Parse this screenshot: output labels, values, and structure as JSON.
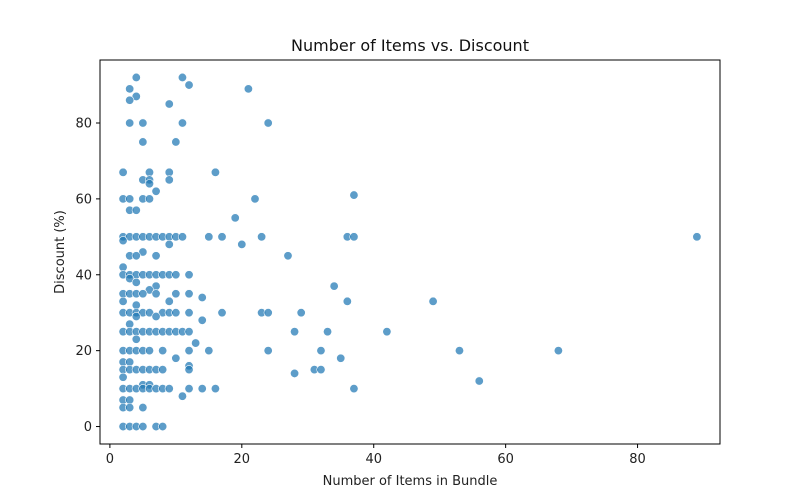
{
  "chart_data": {
    "type": "scatter",
    "title": "Number of Items vs. Discount",
    "xlabel": "Number of Items in Bundle",
    "ylabel": "Discount (%)",
    "xlim": [
      -1.5,
      92.5
    ],
    "ylim": [
      -4.6,
      96.6
    ],
    "xticks": [
      0,
      20,
      40,
      60,
      80
    ],
    "yticks": [
      0,
      20,
      40,
      60,
      80
    ],
    "grid": false,
    "legend": "none",
    "marker_color": "#1f77b4",
    "marker_edge_color": "#ffffff",
    "points": [
      [
        4,
        92
      ],
      [
        11,
        92
      ],
      [
        12,
        90
      ],
      [
        3,
        89
      ],
      [
        21,
        89
      ],
      [
        4,
        87
      ],
      [
        3,
        86
      ],
      [
        9,
        85
      ],
      [
        3,
        80
      ],
      [
        5,
        80
      ],
      [
        11,
        80
      ],
      [
        24,
        80
      ],
      [
        5,
        75
      ],
      [
        10,
        75
      ],
      [
        2,
        67
      ],
      [
        6,
        67
      ],
      [
        9,
        67
      ],
      [
        16,
        67
      ],
      [
        5,
        65
      ],
      [
        6,
        65
      ],
      [
        9,
        65
      ],
      [
        6,
        64
      ],
      [
        7,
        62
      ],
      [
        2,
        60
      ],
      [
        3,
        60
      ],
      [
        5,
        60
      ],
      [
        6,
        60
      ],
      [
        22,
        60
      ],
      [
        37,
        61
      ],
      [
        3,
        57
      ],
      [
        4,
        57
      ],
      [
        19,
        55
      ],
      [
        2,
        50
      ],
      [
        3,
        50
      ],
      [
        4,
        50
      ],
      [
        5,
        50
      ],
      [
        6,
        50
      ],
      [
        7,
        50
      ],
      [
        8,
        50
      ],
      [
        9,
        50
      ],
      [
        10,
        50
      ],
      [
        11,
        50
      ],
      [
        15,
        50
      ],
      [
        17,
        50
      ],
      [
        23,
        50
      ],
      [
        36,
        50
      ],
      [
        37,
        50
      ],
      [
        89,
        50
      ],
      [
        2,
        49
      ],
      [
        20,
        48
      ],
      [
        9,
        48
      ],
      [
        5,
        46
      ],
      [
        3,
        45
      ],
      [
        4,
        45
      ],
      [
        7,
        45
      ],
      [
        27,
        45
      ],
      [
        2,
        42
      ],
      [
        2,
        40
      ],
      [
        3,
        40
      ],
      [
        4,
        40
      ],
      [
        5,
        40
      ],
      [
        6,
        40
      ],
      [
        7,
        40
      ],
      [
        8,
        40
      ],
      [
        9,
        40
      ],
      [
        10,
        40
      ],
      [
        12,
        40
      ],
      [
        3,
        39
      ],
      [
        4,
        38
      ],
      [
        7,
        37
      ],
      [
        34,
        37
      ],
      [
        6,
        36
      ],
      [
        2,
        35
      ],
      [
        3,
        35
      ],
      [
        4,
        35
      ],
      [
        5,
        35
      ],
      [
        7,
        35
      ],
      [
        10,
        35
      ],
      [
        12,
        35
      ],
      [
        14,
        34
      ],
      [
        2,
        33
      ],
      [
        9,
        33
      ],
      [
        36,
        33
      ],
      [
        49,
        33
      ],
      [
        4,
        32
      ],
      [
        2,
        30
      ],
      [
        3,
        30
      ],
      [
        4,
        30
      ],
      [
        5,
        30
      ],
      [
        6,
        30
      ],
      [
        8,
        30
      ],
      [
        9,
        30
      ],
      [
        10,
        30
      ],
      [
        12,
        30
      ],
      [
        17,
        30
      ],
      [
        23,
        30
      ],
      [
        24,
        30
      ],
      [
        29,
        30
      ],
      [
        4,
        29
      ],
      [
        7,
        29
      ],
      [
        14,
        28
      ],
      [
        3,
        27
      ],
      [
        2,
        25
      ],
      [
        3,
        25
      ],
      [
        4,
        25
      ],
      [
        5,
        25
      ],
      [
        6,
        25
      ],
      [
        7,
        25
      ],
      [
        8,
        25
      ],
      [
        9,
        25
      ],
      [
        10,
        25
      ],
      [
        11,
        25
      ],
      [
        12,
        25
      ],
      [
        28,
        25
      ],
      [
        33,
        25
      ],
      [
        42,
        25
      ],
      [
        4,
        23
      ],
      [
        13,
        22
      ],
      [
        2,
        20
      ],
      [
        3,
        20
      ],
      [
        4,
        20
      ],
      [
        5,
        20
      ],
      [
        6,
        20
      ],
      [
        8,
        20
      ],
      [
        12,
        20
      ],
      [
        15,
        20
      ],
      [
        24,
        20
      ],
      [
        32,
        20
      ],
      [
        53,
        20
      ],
      [
        68,
        20
      ],
      [
        10,
        18
      ],
      [
        35,
        18
      ],
      [
        2,
        17
      ],
      [
        3,
        17
      ],
      [
        12,
        16
      ],
      [
        2,
        15
      ],
      [
        3,
        15
      ],
      [
        4,
        15
      ],
      [
        5,
        15
      ],
      [
        6,
        15
      ],
      [
        7,
        15
      ],
      [
        8,
        15
      ],
      [
        12,
        15
      ],
      [
        31,
        15
      ],
      [
        32,
        15
      ],
      [
        28,
        14
      ],
      [
        2,
        13
      ],
      [
        56,
        12
      ],
      [
        5,
        11
      ],
      [
        6,
        11
      ],
      [
        2,
        10
      ],
      [
        3,
        10
      ],
      [
        4,
        10
      ],
      [
        5,
        10
      ],
      [
        6,
        10
      ],
      [
        7,
        10
      ],
      [
        8,
        10
      ],
      [
        9,
        10
      ],
      [
        12,
        10
      ],
      [
        14,
        10
      ],
      [
        16,
        10
      ],
      [
        37,
        10
      ],
      [
        11,
        8
      ],
      [
        2,
        7
      ],
      [
        3,
        7
      ],
      [
        2,
        5
      ],
      [
        3,
        5
      ],
      [
        5,
        5
      ],
      [
        2,
        0
      ],
      [
        3,
        0
      ],
      [
        4,
        0
      ],
      [
        5,
        0
      ],
      [
        7,
        0
      ],
      [
        8,
        0
      ]
    ]
  }
}
